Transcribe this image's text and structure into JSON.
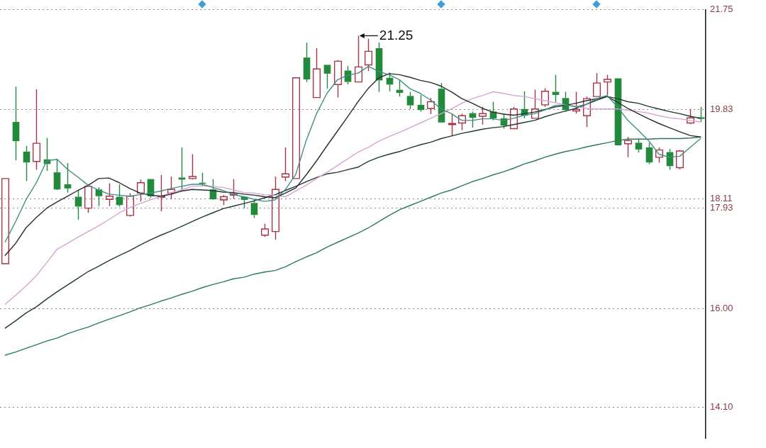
{
  "chart_data": {
    "type": "candlestick",
    "categories": [
      null,
      null,
      null,
      null,
      null,
      null,
      null,
      null,
      null,
      null,
      null,
      null,
      null,
      null,
      null,
      null,
      null,
      null,
      null,
      null,
      null,
      null,
      null,
      null,
      null,
      null,
      null,
      null,
      null,
      null,
      null,
      null,
      null,
      null,
      null,
      null,
      null,
      null,
      null,
      null,
      null,
      null,
      null,
      null,
      null,
      null,
      null,
      null,
      null,
      null,
      null,
      null,
      null,
      null,
      null,
      null,
      null,
      null,
      null,
      null,
      null,
      null,
      null,
      null,
      null,
      null,
      null,
      null
    ],
    "ohlc": [
      [
        16.86,
        18.5,
        16.86,
        18.5
      ],
      [
        19.59,
        20.27,
        18.85,
        19.22
      ],
      [
        19.02,
        19.13,
        18.45,
        18.81
      ],
      [
        18.83,
        20.22,
        18.67,
        19.18
      ],
      [
        18.87,
        19.28,
        18.65,
        18.78
      ],
      [
        18.62,
        18.88,
        18.28,
        18.29
      ],
      [
        18.39,
        18.8,
        18.23,
        18.31
      ],
      [
        18.15,
        18.28,
        17.71,
        17.96
      ],
      [
        17.93,
        18.39,
        17.84,
        18.35
      ],
      [
        18.29,
        18.33,
        17.97,
        18.16
      ],
      [
        18.1,
        18.41,
        17.97,
        18.16
      ],
      [
        18.15,
        18.39,
        17.96,
        17.99
      ],
      [
        17.79,
        18.22,
        17.77,
        18.16
      ],
      [
        18.22,
        18.48,
        18.06,
        18.42
      ],
      [
        18.49,
        18.49,
        18.13,
        18.16
      ],
      [
        18.14,
        18.57,
        17.87,
        18.16
      ],
      [
        18.22,
        18.54,
        18.1,
        18.29
      ],
      [
        18.52,
        19.1,
        18.28,
        18.48
      ],
      [
        18.5,
        18.97,
        18.48,
        18.54
      ],
      [
        18.42,
        18.61,
        18.35,
        18.4
      ],
      [
        18.29,
        18.49,
        18.09,
        18.1
      ],
      [
        18.09,
        18.18,
        17.99,
        18.15
      ],
      [
        18.18,
        18.49,
        18.11,
        18.2
      ],
      [
        18.15,
        18.15,
        17.93,
        18.09
      ],
      [
        18.03,
        18.1,
        17.74,
        17.8
      ],
      [
        17.41,
        17.63,
        17.38,
        17.53
      ],
      [
        17.48,
        18.54,
        17.32,
        18.29
      ],
      [
        18.53,
        19.1,
        18.45,
        18.59
      ],
      [
        18.5,
        20.44,
        18.5,
        20.44
      ],
      [
        20.83,
        21.12,
        20.36,
        20.41
      ],
      [
        20.06,
        21.01,
        20.06,
        20.61
      ],
      [
        20.69,
        20.69,
        20.23,
        20.52
      ],
      [
        20.31,
        20.78,
        20.06,
        20.76
      ],
      [
        20.58,
        20.67,
        20.31,
        20.36
      ],
      [
        20.36,
        21.25,
        20.36,
        20.65
      ],
      [
        20.69,
        21.19,
        20.57,
        20.95
      ],
      [
        21.01,
        21.12,
        20.17,
        20.39
      ],
      [
        20.44,
        20.54,
        20.18,
        20.31
      ],
      [
        20.21,
        20.4,
        20.08,
        20.15
      ],
      [
        20.09,
        20.17,
        19.84,
        19.91
      ],
      [
        19.92,
        20.11,
        19.79,
        19.82
      ],
      [
        19.85,
        20.05,
        19.74,
        19.98
      ],
      [
        20.23,
        20.34,
        19.58,
        19.58
      ],
      [
        19.54,
        19.75,
        19.32,
        19.56
      ],
      [
        19.57,
        19.75,
        19.43,
        19.71
      ],
      [
        19.76,
        19.79,
        19.48,
        19.67
      ],
      [
        19.7,
        19.88,
        19.54,
        19.75
      ],
      [
        19.79,
        19.98,
        19.62,
        19.66
      ],
      [
        19.66,
        19.75,
        19.46,
        19.52
      ],
      [
        19.46,
        19.88,
        19.46,
        19.84
      ],
      [
        19.84,
        20.18,
        19.66,
        19.71
      ],
      [
        19.66,
        20.21,
        19.66,
        19.84
      ],
      [
        19.92,
        20.24,
        19.88,
        20.18
      ],
      [
        20.17,
        20.5,
        19.97,
        20.11
      ],
      [
        20.05,
        20.17,
        19.79,
        19.82
      ],
      [
        19.8,
        20.17,
        19.75,
        19.83
      ],
      [
        19.71,
        20.08,
        19.49,
        20.04
      ],
      [
        20.08,
        20.53,
        20.08,
        20.34
      ],
      [
        20.36,
        20.5,
        20.11,
        20.41
      ],
      [
        20.43,
        20.43,
        19.14,
        19.14
      ],
      [
        19.17,
        19.3,
        18.91,
        19.23
      ],
      [
        19.19,
        19.27,
        19.0,
        19.06
      ],
      [
        19.1,
        19.19,
        18.78,
        18.81
      ],
      [
        18.91,
        19.1,
        18.81,
        19.05
      ],
      [
        19.01,
        19.07,
        18.67,
        18.74
      ],
      [
        18.71,
        19.05,
        18.68,
        19.03
      ],
      [
        19.57,
        19.84,
        19.55,
        19.67
      ],
      [
        19.68,
        19.88,
        19.59,
        19.65
      ]
    ],
    "colors": [
      "#a83545",
      "#238a3c",
      "#238a3c",
      "#a83545",
      "#238a3c",
      "#238a3c",
      "#238a3c",
      "#238a3c",
      "#a83545",
      "#238a3c",
      "#a83545",
      "#238a3c",
      "#a83545",
      "#a83545",
      "#238a3c",
      "#a83545",
      "#a83545",
      "#238a3c",
      "#a83545",
      "#238a3c",
      "#238a3c",
      "#a83545",
      "#a83545",
      "#238a3c",
      "#238a3c",
      "#a83545",
      "#a83545",
      "#a83545",
      "#a83545",
      "#238a3c",
      "#a83545",
      "#238a3c",
      "#a83545",
      "#238a3c",
      "#a83545",
      "#a83545",
      "#238a3c",
      "#238a3c",
      "#238a3c",
      "#238a3c",
      "#238a3c",
      "#a83545",
      "#238a3c",
      "#a83545",
      "#a83545",
      "#238a3c",
      "#a83545",
      "#238a3c",
      "#238a3c",
      "#a83545",
      "#238a3c",
      "#a83545",
      "#a83545",
      "#238a3c",
      "#238a3c",
      "#a83545",
      "#a83545",
      "#a83545",
      "#a83545",
      "#238a3c",
      "#a83545",
      "#238a3c",
      "#238a3c",
      "#a83545",
      "#238a3c",
      "#a83545",
      "#a83545",
      "#238a3c"
    ],
    "series": [
      {
        "type": "line",
        "color": "#3f8f86",
        "values": [
          17.28,
          17.67,
          18.09,
          18.42,
          18.84,
          18.87,
          18.68,
          18.53,
          18.37,
          18.28,
          18.2,
          18.18,
          18.16,
          18.19,
          18.22,
          18.26,
          18.31,
          18.35,
          18.39,
          18.39,
          18.33,
          18.27,
          18.19,
          18.15,
          18.1,
          18.06,
          18.09,
          18.29,
          18.58,
          19.23,
          19.75,
          20.14,
          20.4,
          20.49,
          20.53,
          20.66,
          20.56,
          20.5,
          20.4,
          20.23,
          20.14,
          20.01,
          19.84,
          19.75,
          19.62,
          19.62,
          19.65,
          19.65,
          19.62,
          19.66,
          19.72,
          19.75,
          19.82,
          19.91,
          19.92,
          19.88,
          19.93,
          20.04,
          20.1,
          19.88,
          19.62,
          19.43,
          19.23,
          18.97,
          18.91,
          18.93,
          19.1,
          19.27
        ]
      },
      {
        "type": "line",
        "color": "#2b2b2b",
        "values": [
          17.02,
          17.25,
          17.55,
          17.75,
          17.93,
          18.05,
          18.16,
          18.27,
          18.37,
          18.5,
          18.51,
          18.42,
          18.31,
          18.22,
          18.18,
          18.16,
          18.2,
          18.26,
          18.29,
          18.28,
          18.27,
          18.24,
          18.23,
          18.2,
          18.18,
          18.15,
          18.13,
          18.22,
          18.32,
          18.57,
          18.84,
          19.13,
          19.41,
          19.69,
          19.98,
          20.24,
          20.44,
          20.52,
          20.5,
          20.45,
          20.39,
          20.35,
          20.28,
          20.17,
          20.04,
          19.95,
          19.85,
          19.78,
          19.74,
          19.72,
          19.75,
          19.78,
          19.83,
          19.88,
          19.91,
          19.95,
          20.0,
          20.04,
          20.08,
          19.97,
          19.85,
          19.75,
          19.65,
          19.56,
          19.48,
          19.4,
          19.33,
          19.3
        ]
      },
      {
        "type": "line",
        "color": "#d8a3d4",
        "values": [
          16.08,
          16.25,
          16.43,
          16.63,
          16.88,
          17.14,
          17.25,
          17.37,
          17.48,
          17.59,
          17.71,
          17.84,
          17.94,
          18.02,
          18.09,
          18.15,
          18.23,
          18.28,
          18.35,
          18.36,
          18.35,
          18.33,
          18.28,
          18.23,
          18.22,
          18.19,
          18.18,
          18.15,
          18.26,
          18.37,
          18.5,
          18.62,
          18.75,
          18.88,
          19.01,
          19.1,
          19.22,
          19.31,
          19.39,
          19.48,
          19.57,
          19.66,
          19.75,
          19.84,
          19.95,
          20.04,
          20.1,
          20.17,
          20.14,
          20.1,
          20.08,
          20.04,
          20.0,
          19.96,
          19.92,
          19.89,
          19.85,
          19.84,
          19.84,
          19.84,
          19.82,
          19.79,
          19.76,
          19.71,
          19.67,
          19.65,
          19.62,
          19.59
        ]
      },
      {
        "type": "line",
        "color": "#1f3a33",
        "values": [
          15.62,
          15.76,
          15.91,
          16.03,
          16.18,
          16.32,
          16.45,
          16.58,
          16.71,
          16.81,
          16.92,
          17.02,
          17.11,
          17.22,
          17.32,
          17.41,
          17.49,
          17.58,
          17.67,
          17.76,
          17.84,
          17.92,
          17.97,
          18.02,
          18.07,
          18.13,
          18.19,
          18.27,
          18.35,
          18.44,
          18.52,
          18.59,
          18.62,
          18.67,
          18.72,
          18.83,
          18.91,
          18.97,
          19.02,
          19.09,
          19.15,
          19.2,
          19.27,
          19.32,
          19.37,
          19.41,
          19.45,
          19.48,
          19.5,
          19.54,
          19.58,
          19.62,
          19.69,
          19.75,
          19.8,
          19.85,
          19.93,
          20.01,
          20.08,
          20.04,
          19.98,
          19.95,
          19.89,
          19.84,
          19.79,
          19.75,
          19.7,
          19.66
        ]
      },
      {
        "type": "line",
        "color": "#2d7a56",
        "values": [
          15.1,
          15.16,
          15.23,
          15.3,
          15.37,
          15.43,
          15.51,
          15.58,
          15.64,
          15.72,
          15.79,
          15.86,
          15.93,
          16.01,
          16.07,
          16.14,
          16.2,
          16.27,
          16.33,
          16.4,
          16.46,
          16.51,
          16.57,
          16.6,
          16.66,
          16.7,
          16.73,
          16.8,
          16.9,
          16.99,
          17.07,
          17.18,
          17.27,
          17.36,
          17.45,
          17.55,
          17.67,
          17.79,
          17.9,
          17.98,
          18.06,
          18.14,
          18.22,
          18.28,
          18.36,
          18.44,
          18.5,
          18.57,
          18.63,
          18.7,
          18.78,
          18.84,
          18.91,
          18.97,
          19.02,
          19.06,
          19.11,
          19.15,
          19.19,
          19.23,
          19.26,
          19.26,
          19.26,
          19.27,
          19.27,
          19.27,
          19.28,
          19.3
        ]
      }
    ],
    "ylim": [
      13.5,
      21.75
    ],
    "yticks": [
      21.75,
      19.83,
      18.11,
      17.93,
      {
        "value": 16,
        "label": "16.00"
      },
      {
        "value": 14.1,
        "label": "14.10"
      }
    ],
    "grid": "y",
    "tick_labels": "y",
    "marker": "none",
    "annotations": [
      "21.25"
    ]
  }
}
